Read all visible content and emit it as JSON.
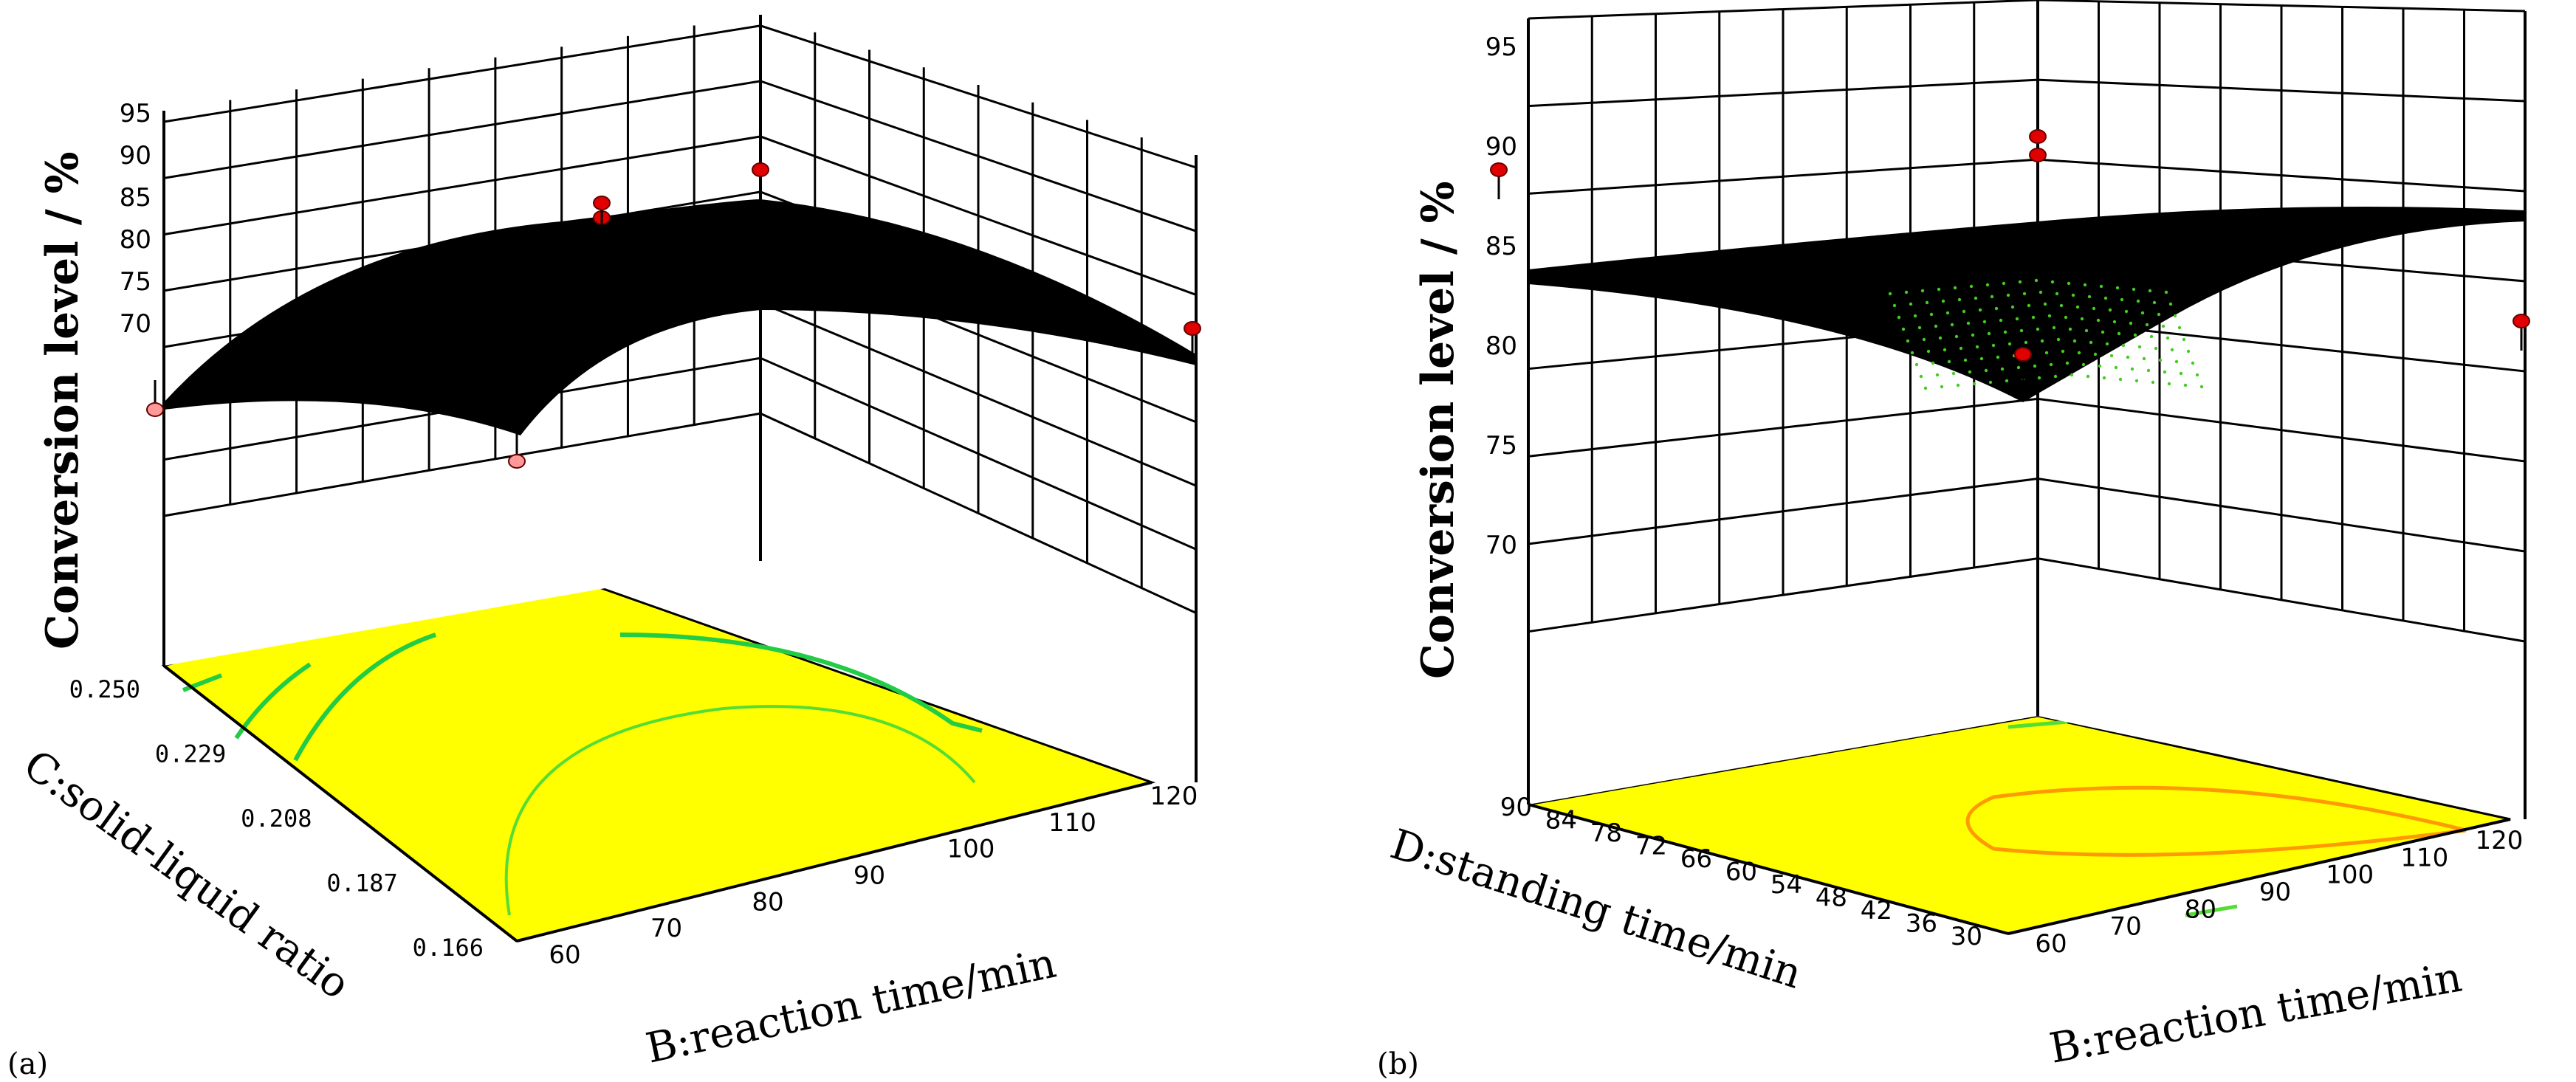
{
  "chart_data": [
    {
      "type": "surface3d",
      "panel": "(a)",
      "zlabel": "Conversion level / %",
      "zticks": [
        "95",
        "90",
        "85",
        "80",
        "75",
        "70"
      ],
      "zlim": [
        70,
        95
      ],
      "xlabel": "B:reaction time/min",
      "xticks": [
        "60",
        "70",
        "80",
        "90",
        "100",
        "110",
        "120"
      ],
      "xlim": [
        60,
        120
      ],
      "ylabel": "C:solid-liquid ratio",
      "yticks": [
        "0.250",
        "0.229",
        "0.208",
        "0.187",
        "0.166"
      ],
      "ylim": [
        0.166,
        0.25
      ],
      "surface_corners": [
        {
          "B": 60,
          "C": 0.25,
          "value": 78
        },
        {
          "B": 60,
          "C": 0.166,
          "value": 76
        },
        {
          "B": 120,
          "C": 0.166,
          "value": 81
        },
        {
          "B": 120,
          "C": 0.25,
          "value": 82
        }
      ],
      "surface_peak": {
        "B": 100,
        "C": 0.21,
        "value": 87
      },
      "design_points": [
        {
          "B": 60,
          "C": 0.25,
          "value": 76
        },
        {
          "B": 60,
          "C": 0.166,
          "value": 74
        },
        {
          "B": 90,
          "C": 0.208,
          "value": 89
        },
        {
          "B": 90,
          "C": 0.208,
          "value": 90
        },
        {
          "B": 120,
          "C": 0.25,
          "value": 91
        },
        {
          "B": 120,
          "C": 0.166,
          "value": 82
        }
      ],
      "floor_color": "#ffff00",
      "contour_color": "#22cc44"
    },
    {
      "type": "surface3d",
      "panel": "(b)",
      "zlabel": "Conversion level / %",
      "zticks": [
        "95",
        "90",
        "85",
        "80",
        "75",
        "70"
      ],
      "zlim": [
        70,
        95
      ],
      "xlabel": "B:reaction time/min",
      "xticks": [
        "60",
        "70",
        "80",
        "90",
        "100",
        "110",
        "120"
      ],
      "xlim": [
        60,
        120
      ],
      "ylabel": "D:standing time/min",
      "yticks": [
        "90",
        "84",
        "78",
        "72",
        "66",
        "60",
        "54",
        "48",
        "42",
        "36",
        "30"
      ],
      "ylim": [
        30,
        90
      ],
      "surface_corners": [
        {
          "B": 60,
          "D": 90,
          "value": 85.5
        },
        {
          "B": 60,
          "D": 30,
          "value": 82
        },
        {
          "B": 120,
          "D": 30,
          "value": 88
        },
        {
          "B": 120,
          "D": 90,
          "value": 88.5
        }
      ],
      "design_points": [
        {
          "B": 60,
          "D": 90,
          "value": 90
        },
        {
          "B": 60,
          "D": 30,
          "value": 82
        },
        {
          "B": 90,
          "D": 60,
          "value": 91
        },
        {
          "B": 90,
          "D": 60,
          "value": 90.5
        },
        {
          "B": 120,
          "D": 90,
          "value": 83
        }
      ],
      "floor_color": "#ffff00",
      "contour_color": "#ff9900"
    }
  ]
}
